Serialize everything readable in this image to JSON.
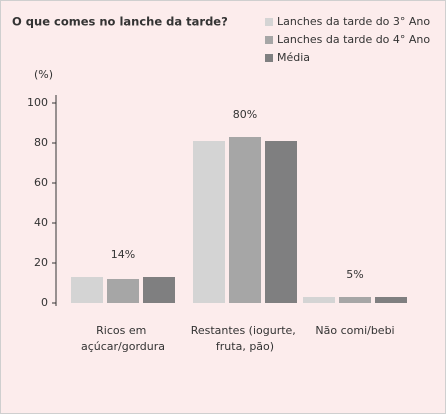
{
  "chart_data": {
    "type": "bar",
    "title": "O que comes no lanche da tarde?",
    "y_axis_label": "(%)",
    "categories": [
      "Ricos em açúcar/gordura",
      "Restantes (iogurte, fruta, pão)",
      "Não comi/bebi"
    ],
    "series": [
      {
        "name": "Lanches da tarde do 3° Ano",
        "color": "#d4d4d4",
        "values": [
          13,
          81,
          3
        ]
      },
      {
        "name": "Lanches da tarde do 4° Ano",
        "color": "#a6a6a6",
        "values": [
          12,
          83,
          3
        ]
      },
      {
        "name": "Média",
        "color": "#7f7f80",
        "values": [
          13,
          81,
          3
        ]
      }
    ],
    "annotations": [
      "14%",
      "80%",
      "5%"
    ],
    "ylim": [
      0,
      100
    ],
    "yticks": [
      0,
      20,
      40,
      60,
      80,
      100
    ],
    "legend": "top-right"
  }
}
